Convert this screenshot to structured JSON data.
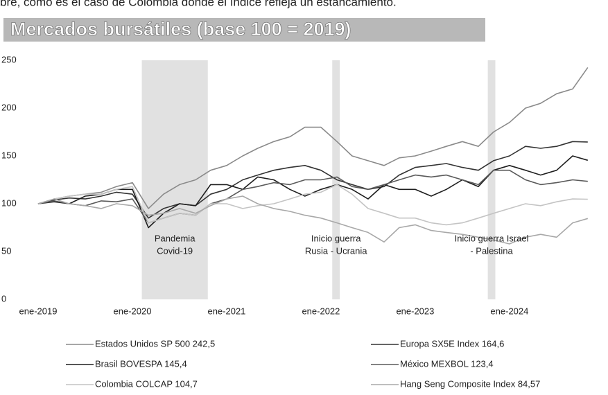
{
  "intro": "bre, como es el caso de Colombia donde el índice refleja un estancamiento.",
  "chart_data": {
    "type": "line",
    "title": "Mercados bursátiles (base 100 = 2019)",
    "x": [
      2019,
      2019.17,
      2019.33,
      2019.5,
      2019.67,
      2019.83,
      2020,
      2020.17,
      2020.33,
      2020.5,
      2020.67,
      2020.83,
      2021,
      2021.17,
      2021.33,
      2021.5,
      2021.67,
      2021.83,
      2022,
      2022.17,
      2022.33,
      2022.5,
      2022.67,
      2022.83,
      2023,
      2023.17,
      2023.33,
      2023.5,
      2023.67,
      2023.83,
      2024,
      2024.17,
      2024.33,
      2024.5,
      2024.67,
      2024.83
    ],
    "xlim": [
      2019,
      2024.92
    ],
    "xticks": [
      {
        "value": 2019,
        "label": "ene-2019"
      },
      {
        "value": 2020,
        "label": "ene-2020"
      },
      {
        "value": 2021,
        "label": "ene-2021"
      },
      {
        "value": 2022,
        "label": "ene-2022"
      },
      {
        "value": 2023,
        "label": "ene-2023"
      },
      {
        "value": 2024,
        "label": "ene-2024"
      }
    ],
    "ylim": [
      0,
      250
    ],
    "yticks": [
      0,
      50,
      100,
      150,
      200,
      250
    ],
    "grid": false,
    "series": [
      {
        "name": "Estados Unidos SP 500 242,5",
        "color": "#8a8a8a",
        "values": [
          100,
          105,
          108,
          110,
          112,
          118,
          122,
          95,
          110,
          120,
          125,
          135,
          140,
          150,
          158,
          165,
          170,
          180,
          180,
          165,
          150,
          145,
          140,
          148,
          150,
          155,
          160,
          165,
          160,
          175,
          185,
          200,
          205,
          215,
          220,
          242.5
        ]
      },
      {
        "name": "Europa SX5E Index 164,6",
        "color": "#333333",
        "values": [
          100,
          104,
          106,
          105,
          108,
          112,
          110,
          85,
          95,
          100,
          98,
          110,
          115,
          125,
          130,
          135,
          138,
          140,
          135,
          125,
          120,
          115,
          118,
          130,
          138,
          140,
          142,
          138,
          135,
          145,
          150,
          160,
          158,
          160,
          165,
          164.6
        ]
      },
      {
        "name": "Brasil BOVESPA 145,4",
        "color": "#1e1e1e",
        "values": [
          100,
          102,
          100,
          108,
          110,
          115,
          115,
          75,
          90,
          100,
          98,
          120,
          120,
          115,
          128,
          125,
          115,
          108,
          115,
          120,
          115,
          105,
          120,
          115,
          115,
          108,
          115,
          125,
          118,
          135,
          140,
          135,
          130,
          135,
          150,
          145.4
        ]
      },
      {
        "name": "México MEXBOL 123,4",
        "color": "#5a5a5a",
        "values": [
          100,
          103,
          100,
          98,
          103,
          102,
          105,
          80,
          85,
          90,
          88,
          100,
          105,
          115,
          118,
          122,
          120,
          125,
          125,
          128,
          118,
          115,
          120,
          125,
          130,
          128,
          130,
          125,
          120,
          135,
          135,
          125,
          120,
          122,
          125,
          123.4
        ]
      },
      {
        "name": "Colombia COLCAP 104,7",
        "color": "#c4c4c4",
        "values": [
          100,
          105,
          108,
          110,
          110,
          115,
          118,
          80,
          85,
          90,
          88,
          100,
          100,
          95,
          98,
          100,
          105,
          110,
          112,
          120,
          110,
          95,
          90,
          85,
          85,
          80,
          78,
          80,
          85,
          90,
          95,
          100,
          98,
          102,
          105,
          104.7
        ]
      },
      {
        "name": "Hang Seng Composite Index 84,57",
        "color": "#a8a8a8",
        "values": [
          100,
          105,
          100,
          98,
          95,
          100,
          98,
          88,
          90,
          95,
          90,
          98,
          105,
          108,
          100,
          95,
          92,
          88,
          85,
          80,
          75,
          70,
          60,
          75,
          78,
          72,
          70,
          68,
          65,
          62,
          58,
          65,
          68,
          65,
          80,
          84.57
        ]
      }
    ],
    "annotations": [
      {
        "label": [
          "Pandemia",
          "Covid-19"
        ],
        "x": [
          2020.1,
          2020.8
        ]
      },
      {
        "label": [
          "Inicio guerra",
          "Rusia - Ucrania"
        ],
        "x": [
          2022.12,
          2022.2
        ]
      },
      {
        "label": [
          "Inicio guerra Israel",
          "- Palestina"
        ],
        "x": [
          2023.77,
          2023.85
        ]
      }
    ]
  }
}
